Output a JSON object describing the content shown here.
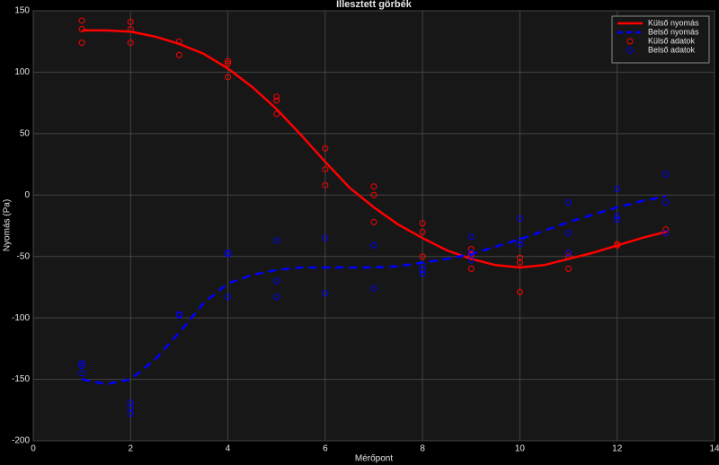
{
  "chart_data": {
    "type": "line",
    "title": "Illesztett görbék",
    "xlabel": "Mérőpont",
    "ylabel": "Nyomás (Pa)",
    "xlim": [
      0,
      14
    ],
    "xticks": [
      0,
      2,
      4,
      6,
      8,
      10,
      12,
      14
    ],
    "ylim": [
      -200,
      150
    ],
    "yticks": [
      -200,
      -150,
      -100,
      -50,
      0,
      50,
      100,
      150
    ],
    "grid": true,
    "legend": "upper right",
    "series": [
      {
        "name": "Külső nyomás",
        "color": "#ff0000",
        "style": "solid",
        "marker": "none",
        "x": [
          1,
          1.5,
          2,
          2.5,
          3,
          3.5,
          4,
          4.5,
          5,
          5.5,
          6,
          6.5,
          7,
          7.5,
          8,
          8.5,
          9,
          9.5,
          10,
          10.5,
          11,
          11.5,
          12,
          12.5,
          13
        ],
        "values": [
          134,
          134,
          133,
          129,
          123,
          115,
          103,
          88,
          70,
          49,
          27,
          6,
          -10,
          -24,
          -35,
          -45,
          -52,
          -57,
          -59,
          -57,
          -52,
          -47,
          -41,
          -35,
          -30
        ]
      },
      {
        "name": "Belső nyomás",
        "color": "#0000ff",
        "style": "dashed",
        "marker": "none",
        "x": [
          1,
          1.5,
          2,
          2.5,
          3,
          3.5,
          4,
          4.5,
          5,
          5.5,
          6,
          6.5,
          7,
          7.5,
          8,
          8.5,
          9,
          9.5,
          10,
          10.5,
          11,
          11.5,
          12,
          12.5,
          13
        ],
        "values": [
          -150,
          -154,
          -150,
          -134,
          -112,
          -88,
          -72,
          -65,
          -61,
          -59,
          -59,
          -59,
          -59,
          -58,
          -55,
          -52,
          -48,
          -42,
          -36,
          -29,
          -22,
          -16,
          -10,
          -5,
          -1
        ]
      },
      {
        "name": "Külső adatok",
        "color": "#ff0000",
        "style": "none",
        "marker": "circle",
        "x": [
          1,
          1,
          1,
          2,
          2,
          2,
          3,
          3,
          4,
          4,
          4,
          5,
          5,
          5,
          6,
          6,
          6,
          7,
          7,
          7,
          8,
          8,
          8,
          9,
          9,
          9,
          10,
          10,
          10,
          11,
          11,
          11,
          12,
          12,
          13,
          13
        ],
        "values": [
          142,
          135,
          124,
          141,
          135,
          124,
          125,
          114,
          109,
          107,
          96,
          80,
          77,
          66,
          38,
          21,
          8,
          7,
          0,
          -22,
          -23,
          -30,
          -50,
          -44,
          -49,
          -60,
          -51,
          -55,
          -79,
          -47,
          -50,
          -60,
          -40,
          -41,
          -28,
          -31
        ]
      },
      {
        "name": "Belső adatok",
        "color": "#0000ff",
        "style": "none",
        "marker": "circle",
        "x": [
          1,
          1,
          1,
          2,
          2,
          2,
          3,
          3,
          4,
          4,
          4,
          5,
          5,
          5,
          6,
          6,
          7,
          7,
          8,
          8,
          8,
          9,
          9,
          9,
          10,
          10,
          10,
          11,
          11,
          11,
          12,
          12,
          12,
          13,
          13,
          13
        ],
        "values": [
          -137,
          -139,
          -145,
          -169,
          -173,
          -178,
          -97,
          -98,
          -47,
          -48,
          -83,
          -37,
          -70,
          -83,
          -35,
          -80,
          -41,
          -76,
          -57,
          -61,
          -64,
          -34,
          -47,
          -53,
          -19,
          -37,
          -40,
          -6,
          -31,
          -47,
          5,
          -17,
          -20,
          17,
          -6,
          -31
        ]
      }
    ]
  }
}
